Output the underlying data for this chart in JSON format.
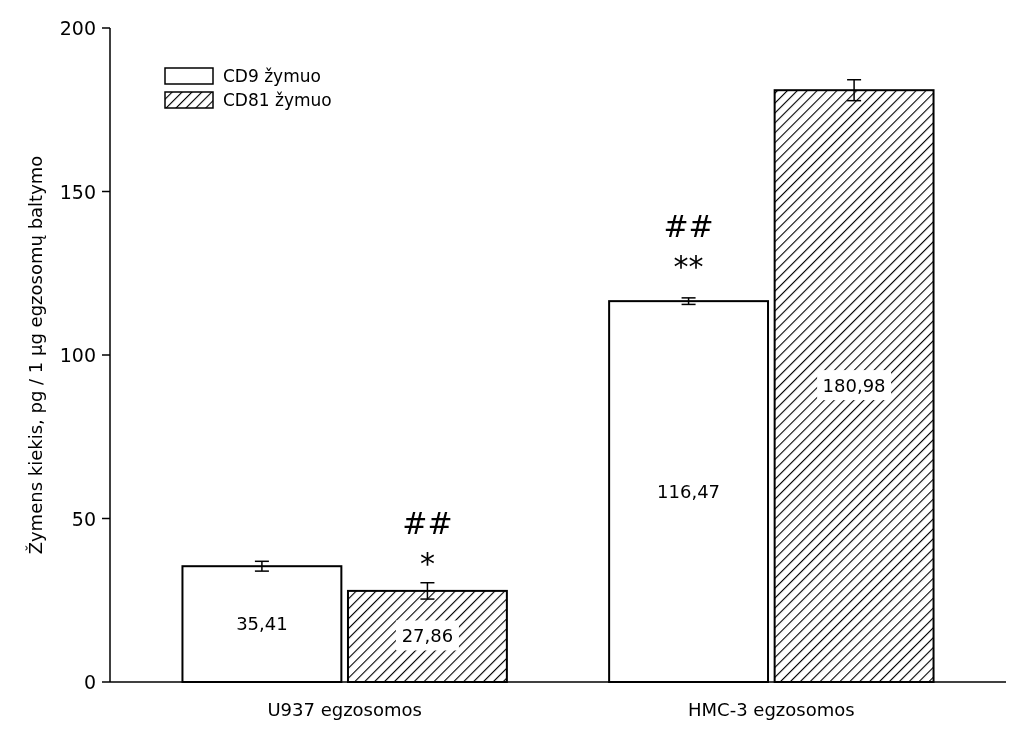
{
  "chart_data": {
    "type": "bar",
    "ylabel": "Žymens kiekis, pg / 1  µg egzosomų baltymo",
    "categories": [
      "U937 egzosomos",
      "HMC-3 egzosomos"
    ],
    "series": [
      {
        "name": "CD9 žymuo",
        "color": "#ffffff",
        "values": [
          35.41,
          116.47
        ],
        "errors": [
          1.5,
          1
        ],
        "value_labels": [
          "35,41",
          "116,47"
        ]
      },
      {
        "name": "CD81 žymuo",
        "color": "#000000",
        "values": [
          27.86,
          180.98
        ],
        "errors": [
          2.5,
          3.2
        ],
        "value_labels": [
          "27,86",
          "180,98"
        ]
      }
    ],
    "ylim": [
      0,
      200
    ],
    "yticks": [
      0,
      50,
      100,
      150,
      200
    ],
    "grid": false,
    "legend": "top left",
    "annotations": [
      {
        "text": "*",
        "x": "U937 egzosomos",
        "y": 33
      },
      "##",
      {
        "text": "**",
        "x": "HMC-3 egzosomos",
        "y": 124
      },
      "##"
    ]
  }
}
